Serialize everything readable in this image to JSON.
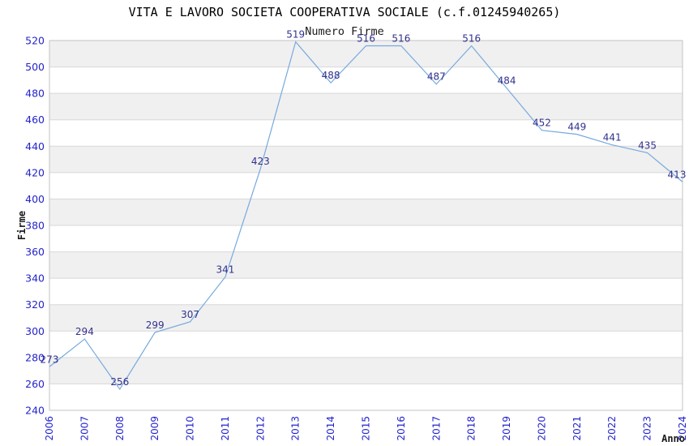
{
  "header": {
    "title": "VITA E LAVORO SOCIETA COOPERATIVA SOCIALE (c.f.01245940265)",
    "subtitle": "Numero Firme"
  },
  "chart_data": {
    "type": "line",
    "title": "Numero Firme",
    "xlabel": "Anno",
    "ylabel": "Firme",
    "x": [
      2006,
      2007,
      2008,
      2009,
      2010,
      2011,
      2012,
      2013,
      2014,
      2015,
      2016,
      2017,
      2018,
      2019,
      2020,
      2021,
      2022,
      2023,
      2024
    ],
    "values": [
      273,
      294,
      256,
      299,
      307,
      341,
      423,
      519,
      488,
      516,
      516,
      487,
      516,
      484,
      452,
      449,
      441,
      435,
      413
    ],
    "series_name": "Numero Firme",
    "ylim": [
      240,
      520
    ],
    "ytick_step": 20,
    "grid": "horizontal-gridlines-with-alternating-bands",
    "legend": "none",
    "point_labels": true,
    "x_tick_rotation": -90,
    "colors": {
      "line": "#76a9dd",
      "tick_label": "#2323cd",
      "data_label": "#32328e",
      "band": "#f0f0f0",
      "gridline": "#d8d8d8",
      "border": "#c3c3c3",
      "axis_label": "#1a1a1a",
      "title": "#000000"
    }
  }
}
